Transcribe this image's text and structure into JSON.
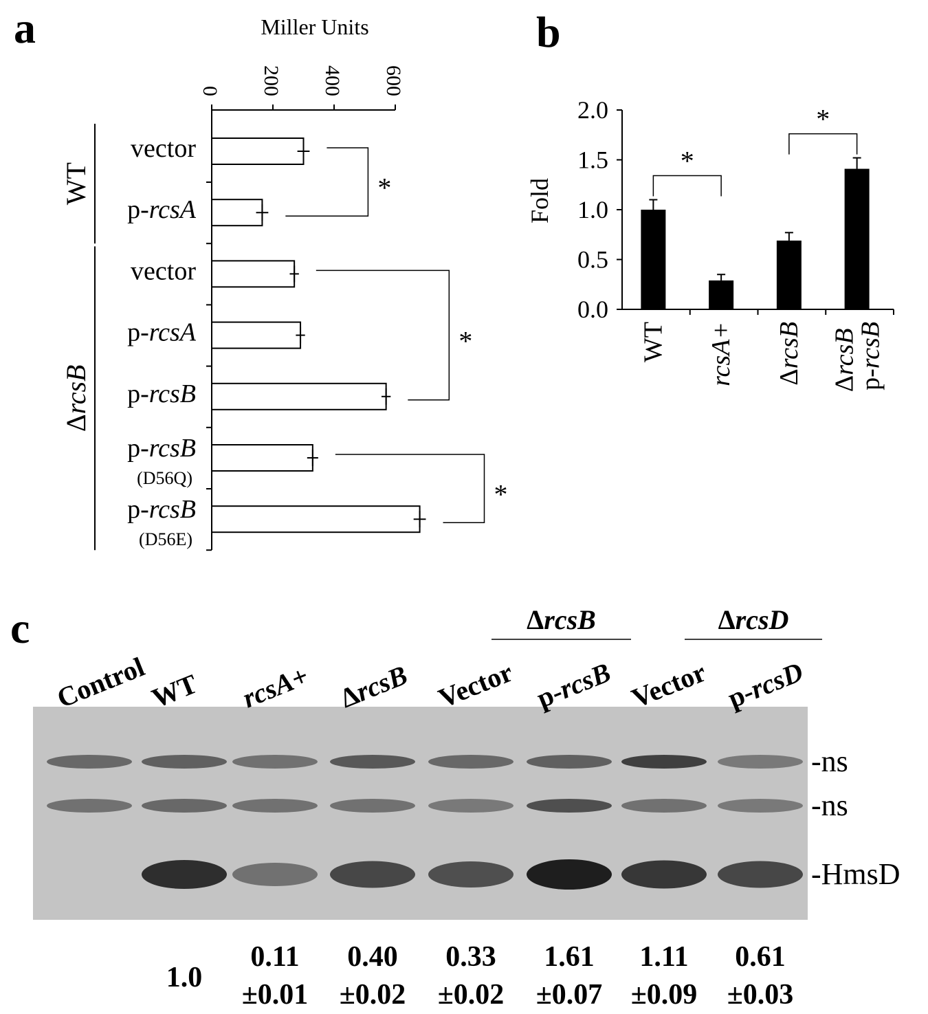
{
  "chart_data": [
    {
      "panel": "a",
      "type": "hbar",
      "xlabel": "Miller Units",
      "categories": [
        "vector",
        "p-rcsA",
        "vector",
        "p-rcsA",
        "p-rcsB",
        "p-rcsB",
        "p-rcsB"
      ],
      "category_notes": [
        null,
        null,
        null,
        null,
        null,
        "(D56Q)",
        "(D56E)"
      ],
      "groups": [
        {
          "name": "WT",
          "size": 2
        },
        {
          "name": "ΔrcsB",
          "size": 5
        }
      ],
      "values": [
        300,
        165,
        270,
        290,
        570,
        330,
        680
      ],
      "errors": [
        20,
        20,
        15,
        15,
        15,
        18,
        20
      ],
      "color": "#ffffff",
      "xlim": [
        0,
        600
      ],
      "xticks": [
        0,
        200,
        400,
        600
      ],
      "significance": [
        {
          "label": "*",
          "pair": [
            0,
            1
          ]
        },
        {
          "label": "*",
          "pair": [
            2,
            4
          ]
        },
        {
          "label": "*",
          "pair": [
            5,
            6
          ]
        }
      ]
    },
    {
      "panel": "b",
      "type": "bar",
      "ylabel": "Fold",
      "categories": [
        "WT",
        "rcsA+",
        "ΔrcsB",
        "ΔrcsB p-rcsB"
      ],
      "values": [
        1.0,
        0.29,
        0.69,
        1.41
      ],
      "errors": [
        0.1,
        0.06,
        0.08,
        0.11
      ],
      "color": "#000000",
      "ylim": [
        0,
        2
      ],
      "yticks": [
        {
          "value": 0,
          "label": "0.0"
        },
        {
          "value": 0.5,
          "label": "0.5"
        },
        {
          "value": 1,
          "label": "1.0"
        },
        {
          "value": 1.5,
          "label": "1.5"
        },
        {
          "value": 2,
          "label": "2.0"
        }
      ],
      "significance": [
        {
          "label": "*",
          "pair": [
            0,
            1
          ]
        },
        {
          "label": "*",
          "pair": [
            2,
            3
          ]
        }
      ]
    }
  ],
  "blot": {
    "panel": "c",
    "lanes": [
      "Control",
      "WT",
      "rcsA+",
      "ΔrcsB",
      "Vector",
      "p-rcsB",
      "Vector",
      "p-rcsD"
    ],
    "lane_groups": [
      {
        "name": "ΔrcsB",
        "lanes": [
          4,
          5
        ]
      },
      {
        "name": "ΔrcsD",
        "lanes": [
          6,
          7
        ]
      }
    ],
    "bands": [
      "-ns",
      "-ns",
      "-HmsD"
    ],
    "quantification": [
      null,
      [
        "1.0"
      ],
      [
        "0.11",
        "±0.01"
      ],
      [
        "0.40",
        "±0.02"
      ],
      [
        "0.33",
        "±0.02"
      ],
      [
        "1.61",
        "±0.07"
      ],
      [
        "1.11",
        "±0.09"
      ],
      [
        "0.61",
        "±0.03"
      ]
    ]
  }
}
